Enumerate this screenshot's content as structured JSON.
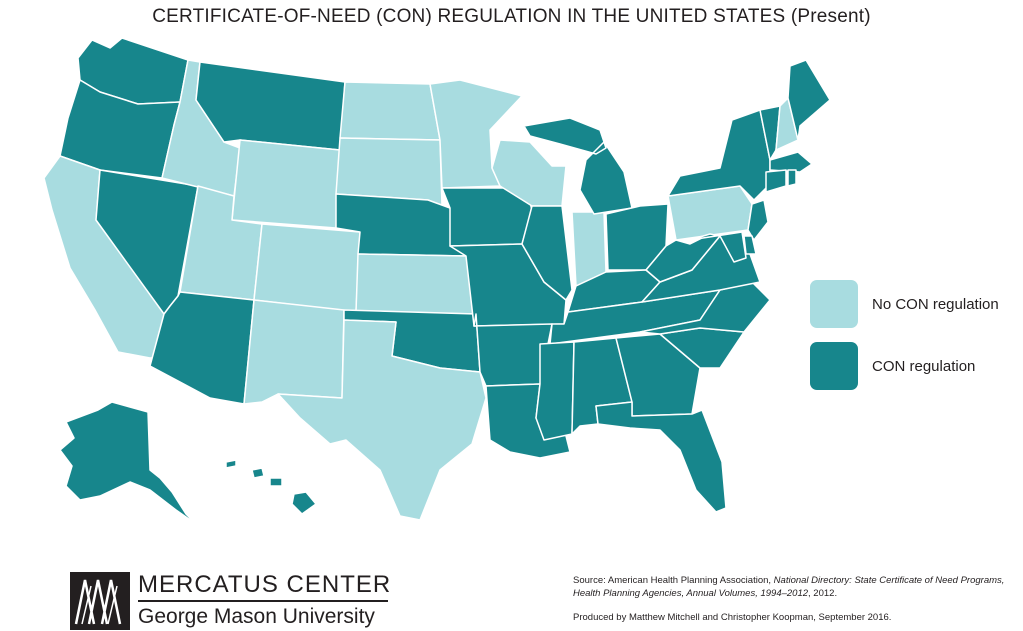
{
  "title": "CERTIFICATE-OF-NEED (CON) REGULATION IN THE UNITED STATES (Present)",
  "legend": [
    {
      "label": "No CON regulation",
      "color": "#a8dce0"
    },
    {
      "label": "CON regulation",
      "color": "#17868c"
    }
  ],
  "colors": {
    "no_con": "#a8dce0",
    "con": "#17868c",
    "border": "#ffffff"
  },
  "states": [
    {
      "code": "WA",
      "status": "con"
    },
    {
      "code": "OR",
      "status": "con"
    },
    {
      "code": "CA",
      "status": "no_con"
    },
    {
      "code": "NV",
      "status": "con"
    },
    {
      "code": "ID",
      "status": "no_con"
    },
    {
      "code": "MT",
      "status": "con"
    },
    {
      "code": "WY",
      "status": "no_con"
    },
    {
      "code": "UT",
      "status": "no_con"
    },
    {
      "code": "AZ",
      "status": "con"
    },
    {
      "code": "CO",
      "status": "no_con"
    },
    {
      "code": "NM",
      "status": "no_con"
    },
    {
      "code": "ND",
      "status": "no_con"
    },
    {
      "code": "SD",
      "status": "no_con"
    },
    {
      "code": "NE",
      "status": "con"
    },
    {
      "code": "KS",
      "status": "no_con"
    },
    {
      "code": "OK",
      "status": "con"
    },
    {
      "code": "TX",
      "status": "no_con"
    },
    {
      "code": "MN",
      "status": "no_con"
    },
    {
      "code": "IA",
      "status": "con"
    },
    {
      "code": "MO",
      "status": "con"
    },
    {
      "code": "AR",
      "status": "con"
    },
    {
      "code": "LA",
      "status": "con"
    },
    {
      "code": "WI",
      "status": "no_con"
    },
    {
      "code": "IL",
      "status": "con"
    },
    {
      "code": "IN",
      "status": "no_con"
    },
    {
      "code": "MI",
      "status": "con"
    },
    {
      "code": "OH",
      "status": "con"
    },
    {
      "code": "KY",
      "status": "con"
    },
    {
      "code": "TN",
      "status": "con"
    },
    {
      "code": "MS",
      "status": "con"
    },
    {
      "code": "AL",
      "status": "con"
    },
    {
      "code": "GA",
      "status": "con"
    },
    {
      "code": "FL",
      "status": "con"
    },
    {
      "code": "SC",
      "status": "con"
    },
    {
      "code": "NC",
      "status": "con"
    },
    {
      "code": "VA",
      "status": "con"
    },
    {
      "code": "WV",
      "status": "con"
    },
    {
      "code": "PA",
      "status": "no_con"
    },
    {
      "code": "NY",
      "status": "con"
    },
    {
      "code": "VT",
      "status": "con"
    },
    {
      "code": "NH",
      "status": "no_con"
    },
    {
      "code": "ME",
      "status": "con"
    },
    {
      "code": "MA",
      "status": "con"
    },
    {
      "code": "CT",
      "status": "con"
    },
    {
      "code": "RI",
      "status": "con"
    },
    {
      "code": "NJ",
      "status": "con"
    },
    {
      "code": "DE",
      "status": "con"
    },
    {
      "code": "MD",
      "status": "con"
    },
    {
      "code": "AK",
      "status": "con"
    },
    {
      "code": "HI",
      "status": "con"
    }
  ],
  "logo": {
    "name": "MERCATUS CENTER",
    "subtitle": "George Mason University"
  },
  "source": {
    "prefix": "Source: American Health Planning Association, ",
    "italic": "National Directory: State Certificate of Need Programs, Health Planning Agencies, Annual Volumes, 1994–2012",
    "suffix": ", 2012."
  },
  "credit": "Produced by Matthew Mitchell and Christopher Koopman, September 2016."
}
